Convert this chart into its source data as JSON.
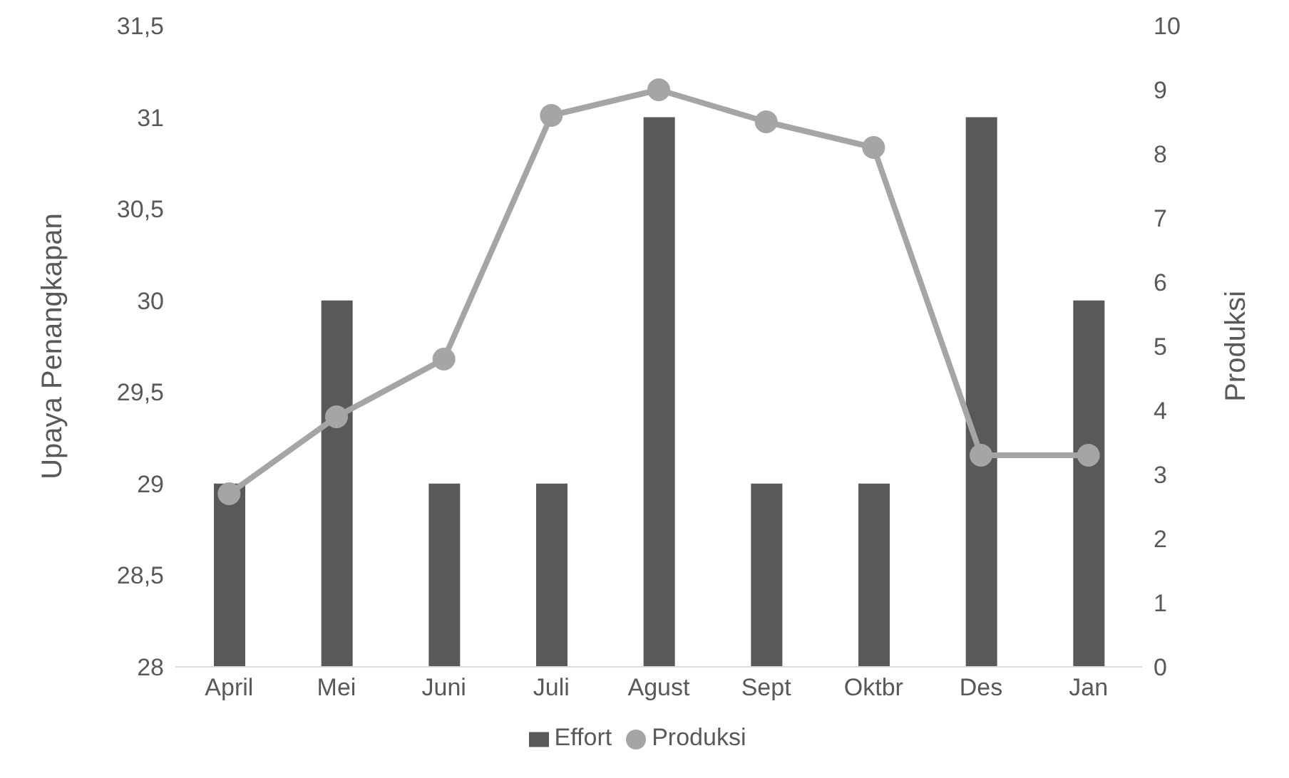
{
  "chart_data": {
    "type": "bar",
    "categories": [
      "April",
      "Mei",
      "Juni",
      "Juli",
      "Agust",
      "Sept",
      "Oktbr",
      "Des",
      "Jan"
    ],
    "series": [
      {
        "name": "Effort",
        "color": "#595959",
        "values": [
          29,
          30,
          29,
          29,
          31,
          29,
          29,
          31,
          30
        ]
      },
      {
        "name": "Produksi",
        "type": "line",
        "axis": "y2",
        "color": "#a5a5a5",
        "values": [
          2.7,
          3.9,
          4.8,
          8.6,
          9.0,
          8.5,
          8.1,
          3.3,
          3.3
        ]
      }
    ],
    "ylabel": "Upaya Penangkapan",
    "y2label": "Produksi",
    "ylim": [
      28,
      31.5
    ],
    "yticks": [
      28,
      {
        "value": 28.5,
        "label": "28,5"
      },
      29,
      {
        "value": 29.5,
        "label": "29,5"
      },
      30,
      {
        "value": 30.5,
        "label": "30,5"
      },
      31,
      {
        "value": 31.5,
        "label": "31,5"
      }
    ],
    "y2lim": [
      0,
      10
    ],
    "y2ticks": [
      0,
      1,
      2,
      3,
      4,
      5,
      6,
      7,
      8,
      9,
      10
    ],
    "legend": "bottom",
    "marker": "circle",
    "grid": false
  }
}
